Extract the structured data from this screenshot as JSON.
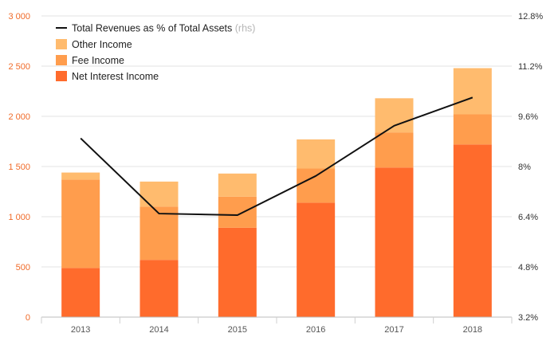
{
  "colors": {
    "net_interest": "#ff6b2c",
    "fee": "#ff9d4d",
    "other": "#ffbb6e",
    "line": "#111111",
    "grid": "#e3e3e3",
    "left_axis_text": "#f06a28"
  },
  "legend": {
    "line_label": "Total Revenues as % of Total Assets",
    "line_suffix": "(rhs)",
    "other_label": "Other Income",
    "fee_label": "Fee Income",
    "nii_label": "Net Interest Income"
  },
  "chart_data": {
    "type": "bar",
    "stacked": true,
    "categories": [
      "2013",
      "2014",
      "2015",
      "2016",
      "2017",
      "2018"
    ],
    "series": [
      {
        "name": "Net Interest Income",
        "values": [
          490,
          570,
          890,
          1140,
          1490,
          1720
        ]
      },
      {
        "name": "Fee Income",
        "values": [
          880,
          530,
          310,
          340,
          350,
          300
        ]
      },
      {
        "name": "Other Income",
        "values": [
          70,
          250,
          230,
          290,
          340,
          460
        ]
      }
    ],
    "line_series": {
      "name": "Total Revenues as % of Total Assets",
      "axis": "right",
      "values": [
        8.9,
        6.5,
        6.45,
        7.7,
        9.3,
        10.2
      ]
    },
    "y_left": {
      "ylim": [
        0,
        3000
      ],
      "ticks": [
        "0",
        "500",
        "1 000",
        "1 500",
        "2 000",
        "2 500",
        "3 000"
      ]
    },
    "y_right": {
      "ylim": [
        3.2,
        12.8
      ],
      "ticks": [
        "3.2%",
        "4.8%",
        "6.4%",
        "8%",
        "9.6%",
        "11.2%",
        "12.8%"
      ]
    },
    "grid": true,
    "legend_position": "top-left"
  }
}
